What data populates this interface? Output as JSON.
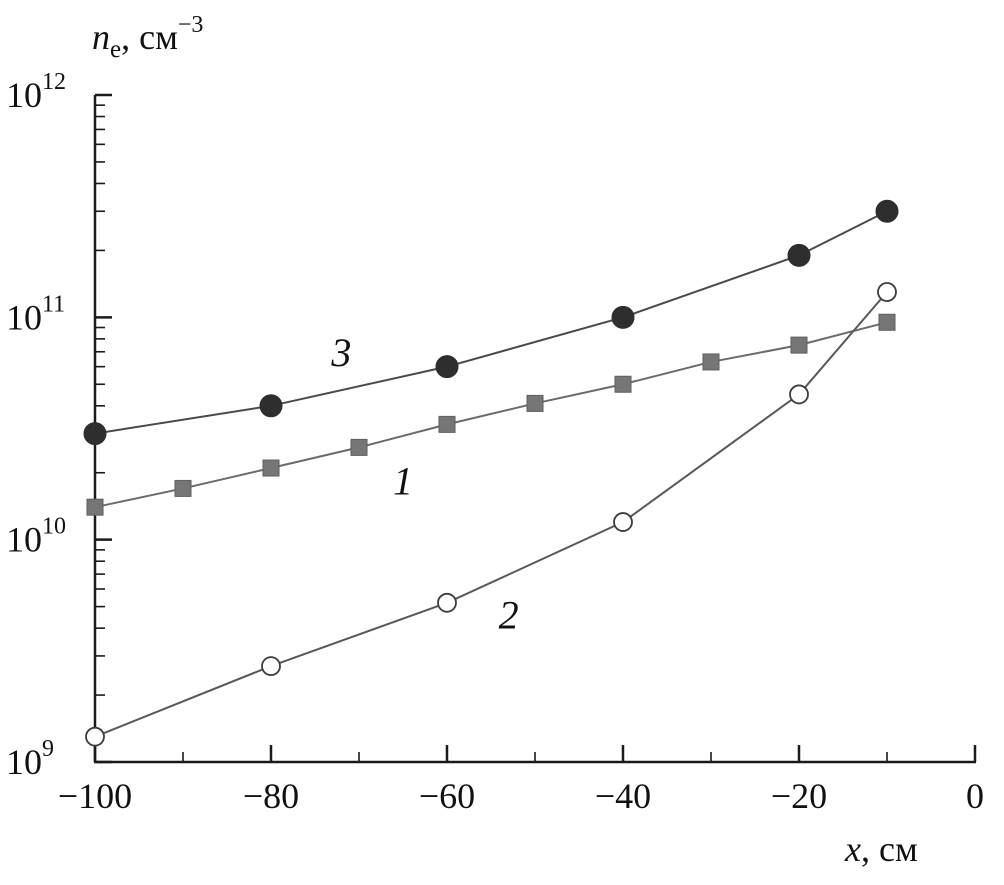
{
  "chart_data": {
    "type": "line",
    "title": "",
    "ylabel_parts": {
      "base": "n",
      "sub": "e",
      "mid": ", см",
      "sup": "−3"
    },
    "xlabel_parts": {
      "base": "x",
      "rest": ", см"
    },
    "x_axis": {
      "min": -100,
      "max": 0,
      "major_ticks": [
        -100,
        -80,
        -60,
        -40,
        -20,
        0
      ],
      "tick_labels": [
        "−100",
        "−80",
        "−60",
        "−40",
        "−20",
        "0"
      ],
      "minor_step": 10
    },
    "y_axis": {
      "scale": "log",
      "min_exp": 9,
      "max_exp": 12,
      "decade_exponents": [
        9,
        10,
        11,
        12
      ],
      "tick_label_base": "10"
    },
    "series": [
      {
        "name": "1",
        "label": "1",
        "marker": "square-filled",
        "marker_color": "#767676",
        "marker_edge": "#5e5e5e",
        "line_color": "#6b6b6b",
        "x": [
          -100,
          -90,
          -80,
          -70,
          -60,
          -50,
          -40,
          -30,
          -20,
          -10
        ],
        "y": [
          14000000000.0,
          17000000000.0,
          21000000000.0,
          26000000000.0,
          33000000000.0,
          41000000000.0,
          50000000000.0,
          63000000000.0,
          75000000000.0,
          95000000000.0
        ],
        "label_x": -65,
        "label_y": 18500000000.0
      },
      {
        "name": "2",
        "label": "2",
        "marker": "circle-open",
        "marker_color": "#ffffff",
        "marker_edge": "#3c3c3c",
        "line_color": "#585858",
        "x": [
          -100,
          -80,
          -60,
          -40,
          -20,
          -10
        ],
        "y": [
          1300000000.0,
          2700000000.0,
          5200000000.0,
          12000000000.0,
          45000000000.0,
          130000000000.0
        ],
        "label_x": -53,
        "label_y": 4600000000.0
      },
      {
        "name": "3",
        "label": "3",
        "marker": "circle-filled",
        "marker_color": "#2e2e2e",
        "marker_edge": "#2e2e2e",
        "line_color": "#4a4a4a",
        "x": [
          -100,
          -80,
          -60,
          -40,
          -20,
          -10
        ],
        "y": [
          30000000000.0,
          40000000000.0,
          60000000000.0,
          100000000000.0,
          190000000000.0,
          300000000000.0
        ],
        "label_x": -72,
        "label_y": 70000000000.0
      }
    ],
    "axis_color": "#1a1a1a",
    "xlim": [
      -100,
      0
    ],
    "ylim_exponents": [
      9,
      12
    ],
    "grid": false,
    "legend_position": "none"
  }
}
